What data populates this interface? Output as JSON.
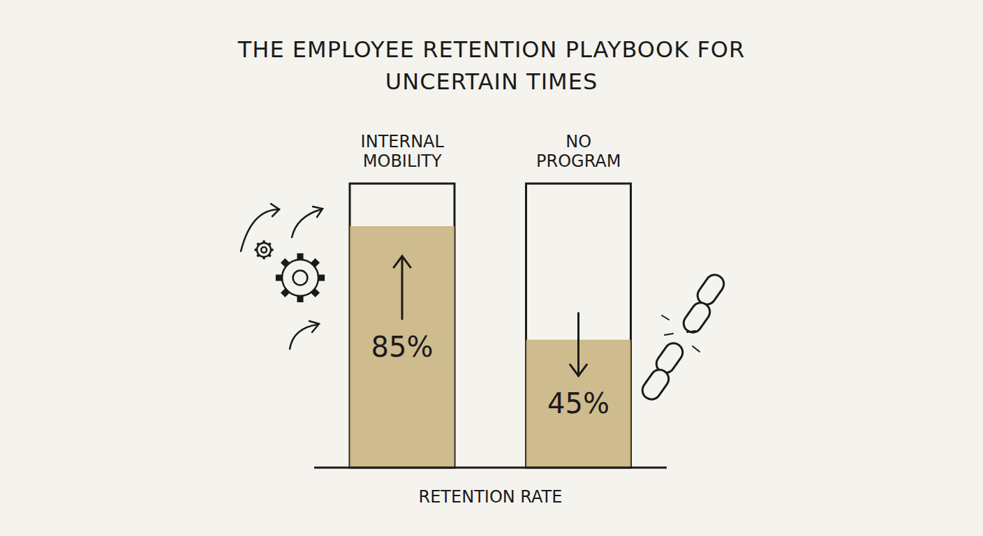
{
  "chart_data": {
    "type": "bar",
    "title": "THE EMPLOYEE RETENTION PLAYBOOK FOR UNCERTAIN TIMES",
    "categories": [
      "INTERNAL MOBILITY",
      "NO PROGRAM"
    ],
    "values": [
      85,
      45
    ],
    "value_labels": [
      "85%",
      "45%"
    ],
    "xlabel": "RETENTION RATE",
    "color": "#c8b27c",
    "ylim": [
      0,
      100
    ],
    "grid": false,
    "data_labels": true,
    "tick_labels": "x"
  }
}
